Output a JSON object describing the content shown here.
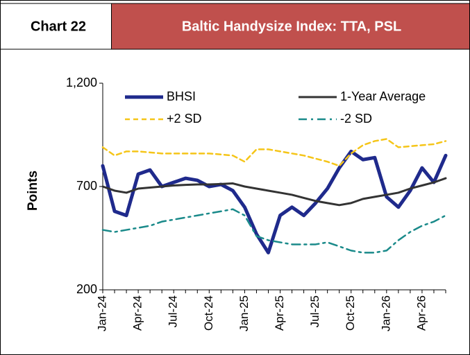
{
  "chart_data": {
    "type": "line",
    "label": "Chart 22",
    "title": "Baltic Handysize Index: TTA, PSL",
    "y_label": "Points",
    "categories": [
      "Jan-24",
      null,
      null,
      "Apr-24",
      null,
      null,
      "Jul-24",
      null,
      null,
      "Oct-24",
      null,
      null,
      "Jan-25",
      null,
      null,
      "Apr-25",
      null,
      null,
      "Jul-25",
      null,
      null,
      "Oct-25",
      null,
      null,
      "Jan-26",
      null,
      null,
      "Apr-26",
      null,
      null
    ],
    "series": [
      {
        "name": "BHSI",
        "color": "#1f2a8c",
        "values": [
          800,
          580,
          560,
          760,
          780,
          700,
          720,
          740,
          730,
          700,
          710,
          680,
          600,
          470,
          380,
          560,
          600,
          560,
          620,
          690,
          790,
          870,
          830,
          840,
          650,
          600,
          680,
          790,
          720,
          850
        ]
      },
      {
        "name": "1-Year Average",
        "color": "#333333",
        "values": [
          700,
          680,
          670,
          690,
          695,
          700,
          705,
          708,
          710,
          710,
          712,
          715,
          700,
          690,
          680,
          670,
          660,
          645,
          630,
          620,
          610,
          620,
          640,
          650,
          660,
          670,
          690,
          705,
          720,
          740
        ]
      },
      {
        "name": "+2 SD",
        "color": "#f5c518",
        "values": [
          890,
          850,
          870,
          870,
          865,
          860,
          860,
          860,
          860,
          860,
          855,
          850,
          820,
          880,
          880,
          870,
          860,
          850,
          835,
          820,
          800,
          860,
          900,
          920,
          930,
          890,
          895,
          900,
          905,
          920
        ]
      },
      {
        "name": "-2 SD",
        "color": "#1a8a8a",
        "values": [
          490,
          480,
          490,
          500,
          510,
          530,
          540,
          550,
          560,
          570,
          580,
          590,
          560,
          460,
          440,
          430,
          420,
          420,
          420,
          430,
          410,
          390,
          380,
          380,
          390,
          440,
          480,
          510,
          530,
          560
        ]
      }
    ],
    "ylim": [
      200,
      1200
    ],
    "yticks": [
      200,
      700,
      {
        "value": 1200,
        "label": "1,200"
      }
    ],
    "legend": "top"
  }
}
